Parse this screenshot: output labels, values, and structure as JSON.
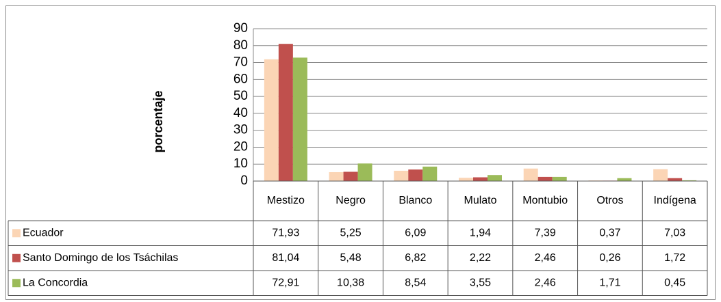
{
  "chart_data": {
    "type": "bar",
    "y_label": "porcentaje",
    "categories": [
      "Mestizo",
      "Negro",
      "Blanco",
      "Mulato",
      "Montubio",
      "Otros",
      "Indígena"
    ],
    "series": [
      {
        "name": "Ecuador",
        "color": "#fbd5b5",
        "values": [
          71.93,
          5.25,
          6.09,
          1.94,
          7.39,
          0.37,
          7.03
        ],
        "value_labels": [
          "71,93",
          "5,25",
          "6,09",
          "1,94",
          "7,39",
          "0,37",
          "7,03"
        ]
      },
      {
        "name": "Santo Domingo de los Tsáchilas",
        "color": "#c0504d",
        "values": [
          81.04,
          5.48,
          6.82,
          2.22,
          2.46,
          0.26,
          1.72
        ],
        "value_labels": [
          "81,04",
          "5,48",
          "6,82",
          "2,22",
          "2,46",
          "0,26",
          "1,72"
        ]
      },
      {
        "name": "La Concordia",
        "color": "#9bbb59",
        "values": [
          72.91,
          10.38,
          8.54,
          3.55,
          2.46,
          1.71,
          0.45
        ],
        "value_labels": [
          "72,91",
          "10,38",
          "8,54",
          "3,55",
          "2,46",
          "1,71",
          "0,45"
        ]
      }
    ],
    "ylim": [
      0,
      90
    ],
    "yticks": [
      0,
      10,
      20,
      30,
      40,
      50,
      60,
      70,
      80,
      90
    ],
    "grid": true
  }
}
